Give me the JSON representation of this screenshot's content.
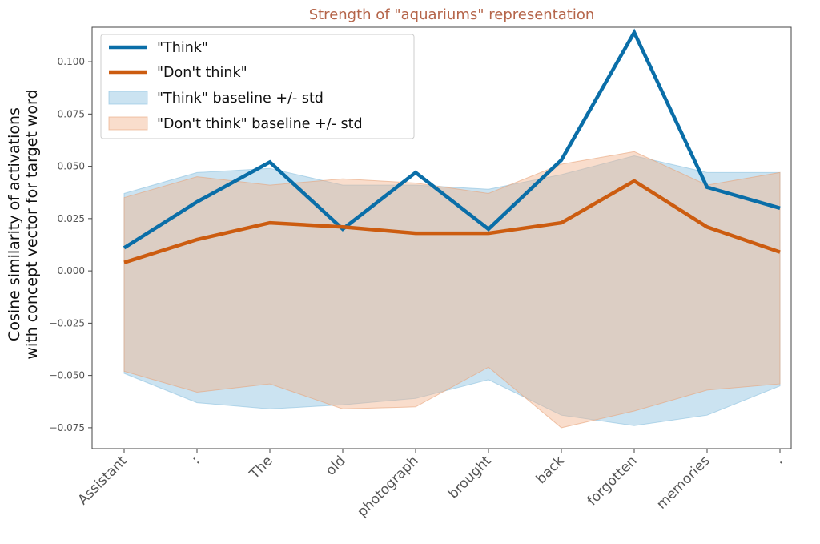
{
  "chart_data": {
    "type": "line",
    "title": "Strength of \"aquariums\" representation",
    "title_color": "#b5654a",
    "ylabel_lines": [
      "Cosine similarity of activations",
      "with concept vector for target word"
    ],
    "xlabel": "",
    "categories": [
      "Assistant",
      ":",
      "The",
      "old",
      "photograph",
      "brought",
      "back",
      "forgotten",
      "memories",
      "."
    ],
    "ylim": [
      -0.085,
      0.1165
    ],
    "yticks": [
      0.1,
      0.075,
      0.05,
      0.025,
      0.0,
      -0.025,
      -0.05,
      -0.075
    ],
    "ytick_labels": [
      "0.100",
      "0.075",
      "0.050",
      "0.025",
      "0.000",
      "−0.025",
      "−0.050",
      "−0.075"
    ],
    "grid": false,
    "legend_position": "top-left",
    "series": [
      {
        "name": "\"Think\"",
        "color": "#0a6ea8",
        "values": [
          0.011,
          0.033,
          0.052,
          0.02,
          0.047,
          0.02,
          0.053,
          0.114,
          0.04,
          0.03
        ]
      },
      {
        "name": "\"Don't think\"",
        "color": "#cc5c10",
        "values": [
          0.004,
          0.015,
          0.023,
          0.021,
          0.018,
          0.018,
          0.023,
          0.043,
          0.021,
          0.009
        ]
      }
    ],
    "bands": [
      {
        "name": "\"Think\" baseline +/- std",
        "fill": "#8cc1e0",
        "stroke": "#8cc1e0",
        "opacity": 0.45,
        "upper": [
          0.037,
          0.047,
          0.049,
          0.041,
          0.041,
          0.039,
          0.046,
          0.055,
          0.047,
          0.047
        ],
        "lower": [
          -0.049,
          -0.063,
          -0.066,
          -0.064,
          -0.061,
          -0.052,
          -0.069,
          -0.074,
          -0.069,
          -0.055
        ]
      },
      {
        "name": "\"Don't think\" baseline +/- std",
        "fill": "#f2b38e",
        "stroke": "#e8a37a",
        "opacity": 0.45,
        "upper": [
          0.035,
          0.045,
          0.041,
          0.044,
          0.042,
          0.037,
          0.051,
          0.057,
          0.041,
          0.047
        ],
        "lower": [
          -0.048,
          -0.058,
          -0.054,
          -0.066,
          -0.065,
          -0.046,
          -0.075,
          -0.067,
          -0.057,
          -0.054
        ]
      }
    ]
  }
}
